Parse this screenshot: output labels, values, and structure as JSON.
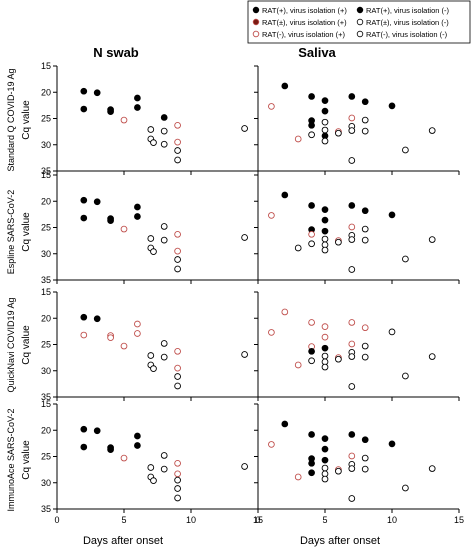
{
  "figure": {
    "columns": [
      "N swab",
      "Saliva"
    ],
    "rows": [
      "Standard Q COVID-19 Ag",
      "Espline SARS-CoV-2",
      "QuickNavi COVID19 Ag",
      "ImmunoAce SARS-CoV-2"
    ],
    "ylabel": "Cq value",
    "xlabel": "Days after onset",
    "colors": {
      "rat_pos": "#000000",
      "rat_pm": "#c0504d",
      "rat_neg_pos": "#c0504d",
      "rat_neg_neg": "#000000",
      "point_fill_red": "#7a1a12"
    }
  },
  "legend": {
    "items": [
      {
        "key": "pp",
        "label": "RAT(+), virus isolation (+)"
      },
      {
        "key": "np",
        "label": "RAT(+), virus isolation (-)"
      },
      {
        "key": "mp",
        "label": "RAT(±), virus isolation (+)"
      },
      {
        "key": "mn",
        "label": "RAT(±), virus isolation (-)"
      },
      {
        "key": "zp",
        "label": "RAT(-), virus isolation (+)"
      },
      {
        "key": "zn",
        "label": "RAT(-), virus isolation (-)"
      }
    ]
  },
  "chart_data": [
    {
      "type": "scatter",
      "panel": "Standard Q COVID-19 Ag / N swab",
      "xlabel": "",
      "ylabel": "Cq value",
      "xlim": [
        0,
        15
      ],
      "ylim": [
        35,
        15
      ],
      "x_ticks": [
        0,
        5,
        10,
        15
      ],
      "y_ticks": [
        15,
        20,
        25,
        30,
        35
      ],
      "points": [
        {
          "x": 2,
          "y": 19.8,
          "cls": "pp"
        },
        {
          "x": 2,
          "y": 23.2,
          "cls": "pp"
        },
        {
          "x": 3,
          "y": 20.1,
          "cls": "pp"
        },
        {
          "x": 4,
          "y": 23.3,
          "cls": "pp"
        },
        {
          "x": 4,
          "y": 23.7,
          "cls": "pp"
        },
        {
          "x": 5,
          "y": 25.3,
          "cls": "zp"
        },
        {
          "x": 6,
          "y": 21.1,
          "cls": "pp"
        },
        {
          "x": 6,
          "y": 22.9,
          "cls": "pp"
        },
        {
          "x": 7,
          "y": 27.1,
          "cls": "zn"
        },
        {
          "x": 7,
          "y": 28.9,
          "cls": "zn"
        },
        {
          "x": 7.2,
          "y": 29.6,
          "cls": "zn"
        },
        {
          "x": 8,
          "y": 24.8,
          "cls": "pn"
        },
        {
          "x": 8,
          "y": 27.4,
          "cls": "zn"
        },
        {
          "x": 8,
          "y": 29.9,
          "cls": "zn"
        },
        {
          "x": 9,
          "y": 26.3,
          "cls": "zp"
        },
        {
          "x": 9,
          "y": 29.5,
          "cls": "zp"
        },
        {
          "x": 9,
          "y": 31.1,
          "cls": "zn"
        },
        {
          "x": 9,
          "y": 32.9,
          "cls": "zn"
        },
        {
          "x": 14,
          "y": 26.9,
          "cls": "zn"
        }
      ]
    },
    {
      "type": "scatter",
      "panel": "Standard Q COVID-19 Ag / Saliva",
      "xlabel": "",
      "ylabel": "",
      "xlim": [
        0,
        15
      ],
      "ylim": [
        35,
        15
      ],
      "x_ticks": [
        0,
        5,
        10,
        15
      ],
      "y_ticks": [
        15,
        20,
        25,
        30,
        35
      ],
      "points": [
        {
          "x": 1,
          "y": 22.7,
          "cls": "zp"
        },
        {
          "x": 2,
          "y": 18.8,
          "cls": "pp"
        },
        {
          "x": 3,
          "y": 28.9,
          "cls": "zp"
        },
        {
          "x": 4,
          "y": 20.8,
          "cls": "pp"
        },
        {
          "x": 4,
          "y": 25.4,
          "cls": "pp"
        },
        {
          "x": 4,
          "y": 26.3,
          "cls": "pp"
        },
        {
          "x": 4,
          "y": 28.1,
          "cls": "zn"
        },
        {
          "x": 5,
          "y": 21.6,
          "cls": "pp"
        },
        {
          "x": 5,
          "y": 23.6,
          "cls": "pp"
        },
        {
          "x": 5,
          "y": 25.7,
          "cls": "zn"
        },
        {
          "x": 5,
          "y": 27.2,
          "cls": "zn"
        },
        {
          "x": 5,
          "y": 28.3,
          "cls": "pn"
        },
        {
          "x": 5,
          "y": 29.3,
          "cls": "zn"
        },
        {
          "x": 6,
          "y": 27.5,
          "cls": "zp"
        },
        {
          "x": 6,
          "y": 27.8,
          "cls": "zn"
        },
        {
          "x": 7,
          "y": 20.8,
          "cls": "pp"
        },
        {
          "x": 7,
          "y": 24.9,
          "cls": "zp"
        },
        {
          "x": 7,
          "y": 26.5,
          "cls": "zn"
        },
        {
          "x": 7,
          "y": 27.3,
          "cls": "zn"
        },
        {
          "x": 7,
          "y": 33.0,
          "cls": "zn"
        },
        {
          "x": 8,
          "y": 21.8,
          "cls": "pp"
        },
        {
          "x": 8,
          "y": 25.3,
          "cls": "zn"
        },
        {
          "x": 8,
          "y": 27.4,
          "cls": "zn"
        },
        {
          "x": 10,
          "y": 22.6,
          "cls": "pn"
        },
        {
          "x": 11,
          "y": 31.0,
          "cls": "zn"
        },
        {
          "x": 13,
          "y": 27.3,
          "cls": "zn"
        }
      ]
    },
    {
      "type": "scatter",
      "panel": "Espline SARS-CoV-2 / N swab",
      "xlabel": "",
      "ylabel": "Cq value",
      "xlim": [
        0,
        15
      ],
      "ylim": [
        35,
        15
      ],
      "x_ticks": [
        0,
        5,
        10,
        15
      ],
      "y_ticks": [
        15,
        20,
        25,
        30,
        35
      ],
      "points": [
        {
          "x": 2,
          "y": 19.8,
          "cls": "pp"
        },
        {
          "x": 2,
          "y": 23.2,
          "cls": "pp"
        },
        {
          "x": 3,
          "y": 20.1,
          "cls": "pp"
        },
        {
          "x": 4,
          "y": 23.3,
          "cls": "pp"
        },
        {
          "x": 4,
          "y": 23.7,
          "cls": "pp"
        },
        {
          "x": 5,
          "y": 25.3,
          "cls": "zp"
        },
        {
          "x": 6,
          "y": 21.1,
          "cls": "pp"
        },
        {
          "x": 6,
          "y": 22.9,
          "cls": "pp"
        },
        {
          "x": 7,
          "y": 27.1,
          "cls": "zn"
        },
        {
          "x": 7,
          "y": 28.9,
          "cls": "zn"
        },
        {
          "x": 7.2,
          "y": 29.6,
          "cls": "zn"
        },
        {
          "x": 8,
          "y": 24.8,
          "cls": "zn"
        },
        {
          "x": 8,
          "y": 27.4,
          "cls": "zn"
        },
        {
          "x": 9,
          "y": 26.3,
          "cls": "zp"
        },
        {
          "x": 9,
          "y": 29.5,
          "cls": "zp"
        },
        {
          "x": 9,
          "y": 31.1,
          "cls": "zn"
        },
        {
          "x": 9,
          "y": 32.9,
          "cls": "zn"
        },
        {
          "x": 14,
          "y": 26.9,
          "cls": "zn"
        }
      ]
    },
    {
      "type": "scatter",
      "panel": "Espline SARS-CoV-2 / Saliva",
      "xlabel": "",
      "ylabel": "",
      "xlim": [
        0,
        15
      ],
      "ylim": [
        35,
        15
      ],
      "x_ticks": [
        0,
        5,
        10,
        15
      ],
      "y_ticks": [
        15,
        20,
        25,
        30,
        35
      ],
      "points": [
        {
          "x": 1,
          "y": 22.7,
          "cls": "zp"
        },
        {
          "x": 2,
          "y": 18.8,
          "cls": "pp"
        },
        {
          "x": 3,
          "y": 28.9,
          "cls": "zn"
        },
        {
          "x": 4,
          "y": 20.8,
          "cls": "pp"
        },
        {
          "x": 4,
          "y": 25.4,
          "cls": "pp"
        },
        {
          "x": 4,
          "y": 26.3,
          "cls": "zp"
        },
        {
          "x": 4,
          "y": 28.1,
          "cls": "zn"
        },
        {
          "x": 5,
          "y": 21.6,
          "cls": "pp"
        },
        {
          "x": 5,
          "y": 23.6,
          "cls": "pp"
        },
        {
          "x": 5,
          "y": 25.7,
          "cls": "pn"
        },
        {
          "x": 5,
          "y": 27.2,
          "cls": "zn"
        },
        {
          "x": 5,
          "y": 28.3,
          "cls": "zn"
        },
        {
          "x": 5,
          "y": 29.3,
          "cls": "zn"
        },
        {
          "x": 6,
          "y": 27.5,
          "cls": "zp"
        },
        {
          "x": 6,
          "y": 27.8,
          "cls": "zn"
        },
        {
          "x": 7,
          "y": 20.8,
          "cls": "pp"
        },
        {
          "x": 7,
          "y": 24.9,
          "cls": "zp"
        },
        {
          "x": 7,
          "y": 26.5,
          "cls": "zn"
        },
        {
          "x": 7,
          "y": 27.3,
          "cls": "zn"
        },
        {
          "x": 7,
          "y": 33.0,
          "cls": "zn"
        },
        {
          "x": 8,
          "y": 21.8,
          "cls": "pp"
        },
        {
          "x": 8,
          "y": 25.3,
          "cls": "zn"
        },
        {
          "x": 8,
          "y": 27.4,
          "cls": "zn"
        },
        {
          "x": 10,
          "y": 22.6,
          "cls": "pp"
        },
        {
          "x": 11,
          "y": 31.0,
          "cls": "zn"
        },
        {
          "x": 13,
          "y": 27.3,
          "cls": "zn"
        }
      ]
    },
    {
      "type": "scatter",
      "panel": "QuickNavi COVID19 Ag / N swab",
      "xlabel": "",
      "ylabel": "Cq value",
      "xlim": [
        0,
        15
      ],
      "ylim": [
        35,
        15
      ],
      "x_ticks": [
        0,
        5,
        10,
        15
      ],
      "y_ticks": [
        15,
        20,
        25,
        30,
        35
      ],
      "points": [
        {
          "x": 2,
          "y": 19.8,
          "cls": "pp"
        },
        {
          "x": 2,
          "y": 23.2,
          "cls": "zp"
        },
        {
          "x": 3,
          "y": 20.1,
          "cls": "pp"
        },
        {
          "x": 4,
          "y": 23.3,
          "cls": "zp"
        },
        {
          "x": 4,
          "y": 23.7,
          "cls": "zp"
        },
        {
          "x": 5,
          "y": 25.3,
          "cls": "zp"
        },
        {
          "x": 6,
          "y": 21.1,
          "cls": "zp"
        },
        {
          "x": 6,
          "y": 22.9,
          "cls": "zp"
        },
        {
          "x": 7,
          "y": 27.1,
          "cls": "zn"
        },
        {
          "x": 7,
          "y": 28.9,
          "cls": "zn"
        },
        {
          "x": 7.2,
          "y": 29.6,
          "cls": "zn"
        },
        {
          "x": 8,
          "y": 24.8,
          "cls": "zn"
        },
        {
          "x": 8,
          "y": 27.4,
          "cls": "zn"
        },
        {
          "x": 9,
          "y": 26.3,
          "cls": "zp"
        },
        {
          "x": 9,
          "y": 29.5,
          "cls": "zp"
        },
        {
          "x": 9,
          "y": 31.1,
          "cls": "zn"
        },
        {
          "x": 9,
          "y": 32.9,
          "cls": "zn"
        },
        {
          "x": 14,
          "y": 26.9,
          "cls": "zn"
        }
      ]
    },
    {
      "type": "scatter",
      "panel": "QuickNavi COVID19 Ag / Saliva",
      "xlabel": "",
      "ylabel": "",
      "xlim": [
        0,
        15
      ],
      "ylim": [
        35,
        15
      ],
      "x_ticks": [
        0,
        5,
        10,
        15
      ],
      "y_ticks": [
        15,
        20,
        25,
        30,
        35
      ],
      "points": [
        {
          "x": 1,
          "y": 22.7,
          "cls": "zp"
        },
        {
          "x": 2,
          "y": 18.8,
          "cls": "zp"
        },
        {
          "x": 3,
          "y": 28.9,
          "cls": "zp"
        },
        {
          "x": 4,
          "y": 20.8,
          "cls": "zp"
        },
        {
          "x": 4,
          "y": 25.4,
          "cls": "zp"
        },
        {
          "x": 4,
          "y": 26.3,
          "cls": "pp"
        },
        {
          "x": 4,
          "y": 28.1,
          "cls": "zn"
        },
        {
          "x": 5,
          "y": 21.6,
          "cls": "zp"
        },
        {
          "x": 5,
          "y": 23.6,
          "cls": "zp"
        },
        {
          "x": 5,
          "y": 25.7,
          "cls": "pn"
        },
        {
          "x": 5,
          "y": 27.2,
          "cls": "zn"
        },
        {
          "x": 5,
          "y": 28.3,
          "cls": "zn"
        },
        {
          "x": 5,
          "y": 29.3,
          "cls": "zn"
        },
        {
          "x": 6,
          "y": 27.5,
          "cls": "zp"
        },
        {
          "x": 6,
          "y": 27.8,
          "cls": "zn"
        },
        {
          "x": 7,
          "y": 20.8,
          "cls": "zp"
        },
        {
          "x": 7,
          "y": 24.9,
          "cls": "zp"
        },
        {
          "x": 7,
          "y": 26.5,
          "cls": "zn"
        },
        {
          "x": 7,
          "y": 27.3,
          "cls": "zn"
        },
        {
          "x": 7,
          "y": 33.0,
          "cls": "zn"
        },
        {
          "x": 8,
          "y": 21.8,
          "cls": "zp"
        },
        {
          "x": 8,
          "y": 25.3,
          "cls": "zn"
        },
        {
          "x": 8,
          "y": 27.4,
          "cls": "zn"
        },
        {
          "x": 10,
          "y": 22.6,
          "cls": "zn"
        },
        {
          "x": 11,
          "y": 31.0,
          "cls": "zn"
        },
        {
          "x": 13,
          "y": 27.3,
          "cls": "zn"
        }
      ]
    },
    {
      "type": "scatter",
      "panel": "ImmunoAce SARS-CoV-2 / N swab",
      "xlabel": "Days after onset",
      "ylabel": "Cq value",
      "xlim": [
        0,
        15
      ],
      "ylim": [
        35,
        15
      ],
      "x_ticks": [
        0,
        5,
        10,
        15
      ],
      "y_ticks": [
        15,
        20,
        25,
        30,
        35
      ],
      "points": [
        {
          "x": 2,
          "y": 19.8,
          "cls": "pp"
        },
        {
          "x": 2,
          "y": 23.2,
          "cls": "pp"
        },
        {
          "x": 3,
          "y": 20.1,
          "cls": "pp"
        },
        {
          "x": 4,
          "y": 23.3,
          "cls": "pp"
        },
        {
          "x": 4,
          "y": 23.7,
          "cls": "pp"
        },
        {
          "x": 5,
          "y": 25.3,
          "cls": "zp"
        },
        {
          "x": 6,
          "y": 21.1,
          "cls": "pp"
        },
        {
          "x": 6,
          "y": 22.9,
          "cls": "pp"
        },
        {
          "x": 7,
          "y": 27.1,
          "cls": "zn"
        },
        {
          "x": 7,
          "y": 28.9,
          "cls": "zn"
        },
        {
          "x": 7.2,
          "y": 29.6,
          "cls": "zn"
        },
        {
          "x": 8,
          "y": 24.8,
          "cls": "zn"
        },
        {
          "x": 8,
          "y": 27.4,
          "cls": "zn"
        },
        {
          "x": 9,
          "y": 26.3,
          "cls": "zp"
        },
        {
          "x": 9,
          "y": 28.3,
          "cls": "zp"
        },
        {
          "x": 9,
          "y": 29.5,
          "cls": "zn"
        },
        {
          "x": 9,
          "y": 31.1,
          "cls": "zn"
        },
        {
          "x": 9,
          "y": 32.9,
          "cls": "zn"
        },
        {
          "x": 14,
          "y": 26.9,
          "cls": "zn"
        }
      ]
    },
    {
      "type": "scatter",
      "panel": "ImmunoAce SARS-CoV-2 / Saliva",
      "xlabel": "Days after onset",
      "ylabel": "",
      "xlim": [
        0,
        15
      ],
      "ylim": [
        35,
        15
      ],
      "x_ticks": [
        0,
        5,
        10,
        15
      ],
      "y_ticks": [
        15,
        20,
        25,
        30,
        35
      ],
      "points": [
        {
          "x": 1,
          "y": 22.7,
          "cls": "zp"
        },
        {
          "x": 2,
          "y": 18.8,
          "cls": "pp"
        },
        {
          "x": 3,
          "y": 28.9,
          "cls": "zp"
        },
        {
          "x": 4,
          "y": 20.8,
          "cls": "pp"
        },
        {
          "x": 4,
          "y": 25.4,
          "cls": "pp"
        },
        {
          "x": 4,
          "y": 26.3,
          "cls": "pp"
        },
        {
          "x": 4,
          "y": 28.1,
          "cls": "pp"
        },
        {
          "x": 5,
          "y": 21.6,
          "cls": "pp"
        },
        {
          "x": 5,
          "y": 23.6,
          "cls": "pp"
        },
        {
          "x": 5,
          "y": 25.7,
          "cls": "pp"
        },
        {
          "x": 5,
          "y": 27.2,
          "cls": "zn"
        },
        {
          "x": 5,
          "y": 28.3,
          "cls": "zn"
        },
        {
          "x": 5,
          "y": 29.3,
          "cls": "zn"
        },
        {
          "x": 6,
          "y": 27.5,
          "cls": "zp"
        },
        {
          "x": 6,
          "y": 27.8,
          "cls": "zn"
        },
        {
          "x": 7,
          "y": 20.8,
          "cls": "pp"
        },
        {
          "x": 7,
          "y": 24.9,
          "cls": "zp"
        },
        {
          "x": 7,
          "y": 26.5,
          "cls": "zn"
        },
        {
          "x": 7,
          "y": 27.3,
          "cls": "zn"
        },
        {
          "x": 7,
          "y": 33.0,
          "cls": "zn"
        },
        {
          "x": 8,
          "y": 21.8,
          "cls": "pp"
        },
        {
          "x": 8,
          "y": 25.3,
          "cls": "zn"
        },
        {
          "x": 8,
          "y": 27.4,
          "cls": "zn"
        },
        {
          "x": 10,
          "y": 22.6,
          "cls": "pp"
        },
        {
          "x": 11,
          "y": 31.0,
          "cls": "zn"
        },
        {
          "x": 13,
          "y": 27.3,
          "cls": "zn"
        }
      ]
    }
  ]
}
